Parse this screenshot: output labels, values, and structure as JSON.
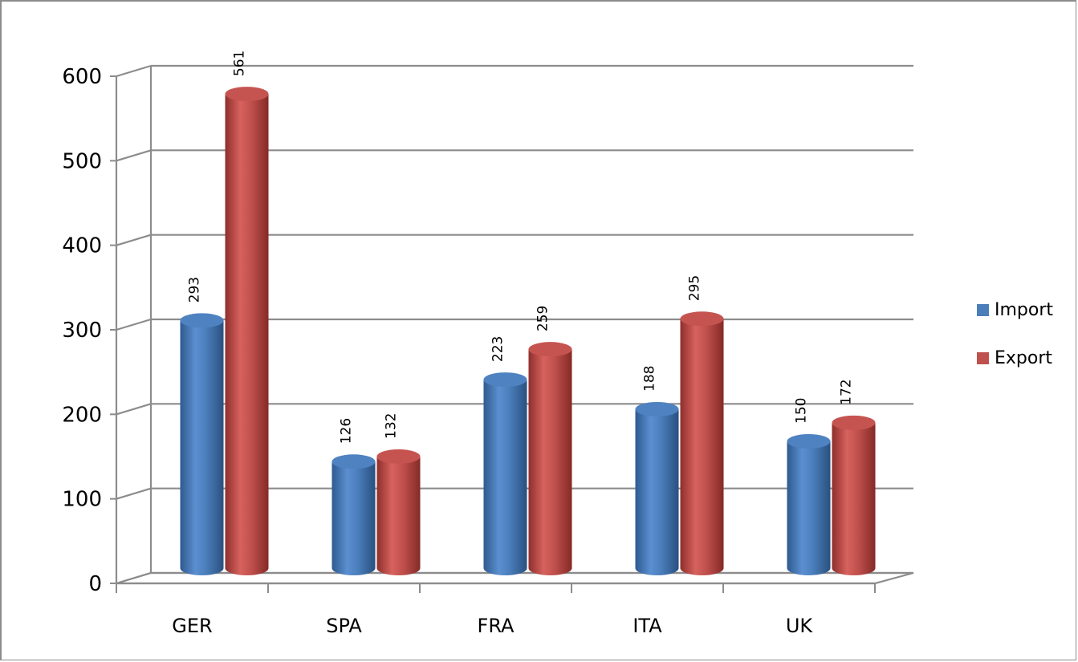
{
  "chart_data": {
    "type": "bar",
    "categories": [
      "GER",
      "SPA",
      "FRA",
      "ITA",
      "UK"
    ],
    "series": [
      {
        "name": "Import",
        "values": [
          293,
          126,
          223,
          188,
          150
        ],
        "color": "#4a7ebb"
      },
      {
        "name": "Export",
        "values": [
          561,
          132,
          259,
          295,
          172
        ],
        "color": "#c0504d"
      }
    ],
    "title": "",
    "xlabel": "",
    "ylabel": "",
    "ylim": [
      0,
      600
    ],
    "yticks": [
      "0",
      "100",
      "200",
      "300",
      "400",
      "500",
      "600"
    ],
    "grid": true,
    "legend": "right",
    "style": "3d-cylinder"
  }
}
